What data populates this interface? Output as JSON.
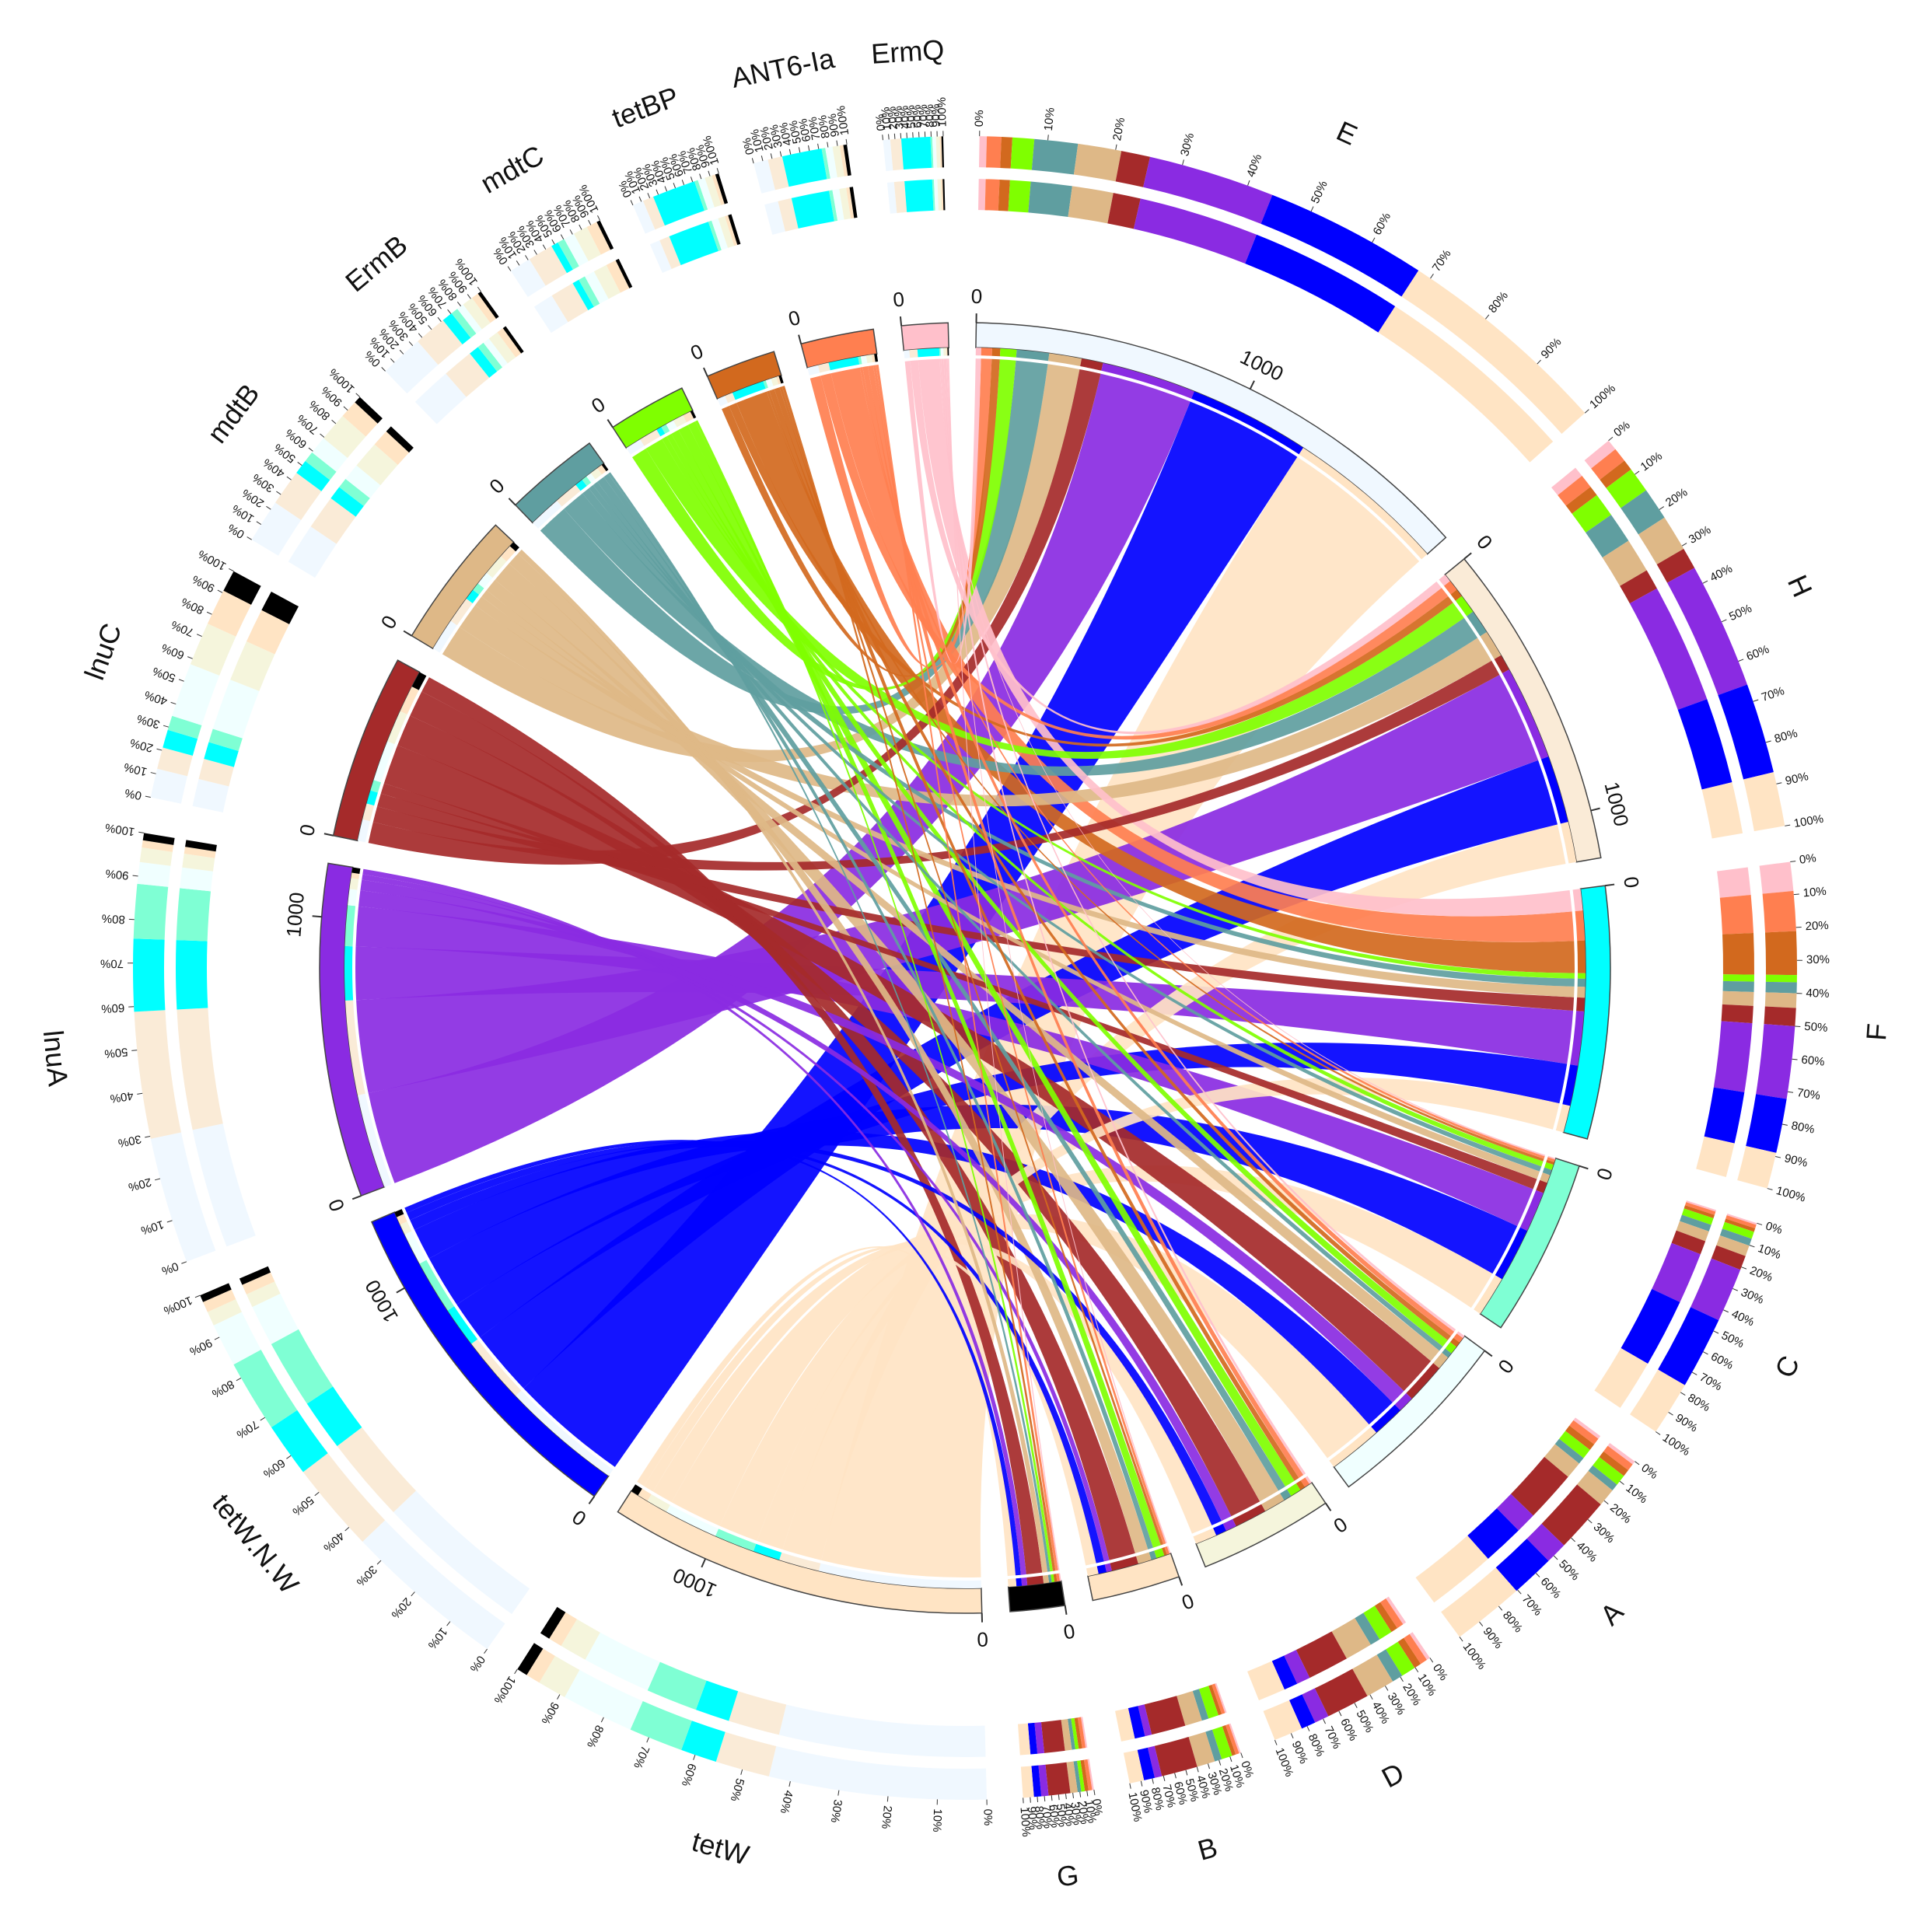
{
  "chart_data": {
    "type": "chord",
    "samples": [
      {
        "name": "E",
        "color": "#f0f8ff"
      },
      {
        "name": "H",
        "color": "#faebd7"
      },
      {
        "name": "F",
        "color": "#00ffff"
      },
      {
        "name": "C",
        "color": "#7fffd4"
      },
      {
        "name": "A",
        "color": "#f0ffff"
      },
      {
        "name": "D",
        "color": "#f5f5dc"
      },
      {
        "name": "B",
        "color": "#ffe4c4"
      },
      {
        "name": "G",
        "color": "#000000"
      }
    ],
    "genes": [
      {
        "name": "tetW",
        "color": "#ffe4c4"
      },
      {
        "name": "tetW.N.W",
        "color": "#0000ff"
      },
      {
        "name": "lnuA",
        "color": "#8a2be2"
      },
      {
        "name": "lnuC",
        "color": "#a52a2a"
      },
      {
        "name": "mdtB",
        "color": "#deb887"
      },
      {
        "name": "ErmB",
        "color": "#5f9ea0"
      },
      {
        "name": "mdtC",
        "color": "#7fff00"
      },
      {
        "name": "tetBP",
        "color": "#d2691e"
      },
      {
        "name": "ANT6-Ia",
        "color": "#ff7f50"
      },
      {
        "name": "ErmQ",
        "color": "#ffc0cb"
      }
    ],
    "matrix": [
      [
        600,
        150,
        100,
        150,
        200,
        80,
        40,
        30
      ],
      [
        450,
        250,
        150,
        200,
        120,
        40,
        30,
        20
      ],
      [
        350,
        350,
        200,
        150,
        60,
        40,
        20,
        20
      ],
      [
        80,
        60,
        50,
        40,
        150,
        120,
        100,
        60
      ],
      [
        120,
        100,
        40,
        30,
        50,
        80,
        50,
        20
      ],
      [
        120,
        90,
        30,
        20,
        20,
        30,
        20,
        10
      ],
      [
        60,
        70,
        20,
        20,
        30,
        40,
        30,
        10
      ],
      [
        30,
        30,
        120,
        10,
        20,
        20,
        10,
        10
      ],
      [
        40,
        40,
        110,
        10,
        20,
        20,
        10,
        10
      ],
      [
        20,
        30,
        80,
        5,
        10,
        10,
        5,
        5
      ]
    ],
    "scale_ticks": [
      0,
      1000
    ],
    "pct_ticks": [
      {
        "value": 0,
        "label": "0%"
      },
      {
        "value": 10,
        "label": "10%"
      },
      {
        "value": 20,
        "label": "20%"
      },
      {
        "value": 30,
        "label": "30%"
      },
      {
        "value": 40,
        "label": "40%"
      },
      {
        "value": 50,
        "label": "50%"
      },
      {
        "value": 60,
        "label": "60%"
      },
      {
        "value": 70,
        "label": "70%"
      },
      {
        "value": 80,
        "label": "80%"
      },
      {
        "value": 90,
        "label": "90%"
      },
      {
        "value": 100,
        "label": "100%"
      }
    ]
  }
}
